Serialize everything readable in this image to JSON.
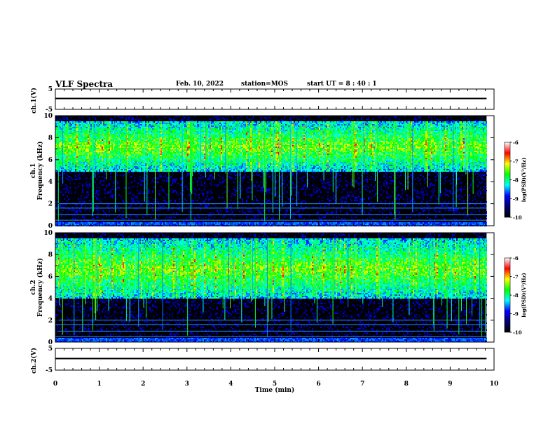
{
  "header": {
    "title": "VLF Spectra",
    "date": "Feb. 10, 2022",
    "station": "station=MOS",
    "start_ut": "start UT =   8 : 40 : 1"
  },
  "chart_data": [
    {
      "type": "line",
      "panel": "ch1-waveform",
      "ylabel": "ch.1(V)",
      "ylim": [
        -5,
        5
      ],
      "yticks": [
        "5",
        "-5"
      ],
      "x": [
        0,
        9.83
      ],
      "values": [
        0,
        0
      ],
      "xlim": [
        0,
        10
      ]
    },
    {
      "type": "heatmap",
      "panel": "ch1-spectrogram",
      "ylabel": "ch.1\nFrequency (kHz)",
      "ylabel_lines": [
        "ch.1",
        "Frequency (kHz)"
      ],
      "ylim": [
        0,
        10
      ],
      "yticks": [
        "0",
        "2",
        "4",
        "6",
        "8",
        "10"
      ],
      "xlim": [
        0,
        10
      ],
      "data_xmax": 9.83,
      "dominant_band_khz": [
        5,
        9.5
      ],
      "colorbar": {
        "label": "log(PSD)(V²/Hz)",
        "range": [
          -10,
          -6
        ],
        "ticks": [
          "-6",
          "-7",
          "-8",
          "-9",
          "-10"
        ]
      }
    },
    {
      "type": "heatmap",
      "panel": "ch2-spectrogram",
      "ylabel": "ch.2\nFrequency (kHz)",
      "ylabel_lines": [
        "ch.2",
        "Frequency (kHz)"
      ],
      "ylim": [
        0,
        10
      ],
      "yticks": [
        "0",
        "2",
        "4",
        "6",
        "8",
        "10"
      ],
      "xlim": [
        0,
        10
      ],
      "data_xmax": 9.83,
      "dominant_band_khz": [
        4,
        9.5
      ],
      "colorbar": {
        "label": "log(PSD)(V²/Hz)",
        "range": [
          -10,
          -6
        ],
        "ticks": [
          "-6",
          "-7",
          "-8",
          "-9",
          "-10"
        ]
      }
    },
    {
      "type": "line",
      "panel": "ch2-waveform",
      "ylabel": "ch.2(V)",
      "ylim": [
        -5,
        5
      ],
      "yticks": [
        "5",
        "-5"
      ],
      "x": [
        0,
        9.83
      ],
      "values": [
        0,
        0
      ],
      "xlim": [
        0,
        10
      ],
      "xlabel": "Time (min)",
      "xticks": [
        "0",
        "1",
        "2",
        "3",
        "4",
        "5",
        "6",
        "7",
        "8",
        "9",
        "10"
      ]
    }
  ],
  "colors": {
    "colormap": [
      "#000000",
      "#00006e",
      "#0000ff",
      "#00ffff",
      "#00ff00",
      "#ffff00",
      "#ff0000",
      "#ffffff"
    ]
  }
}
